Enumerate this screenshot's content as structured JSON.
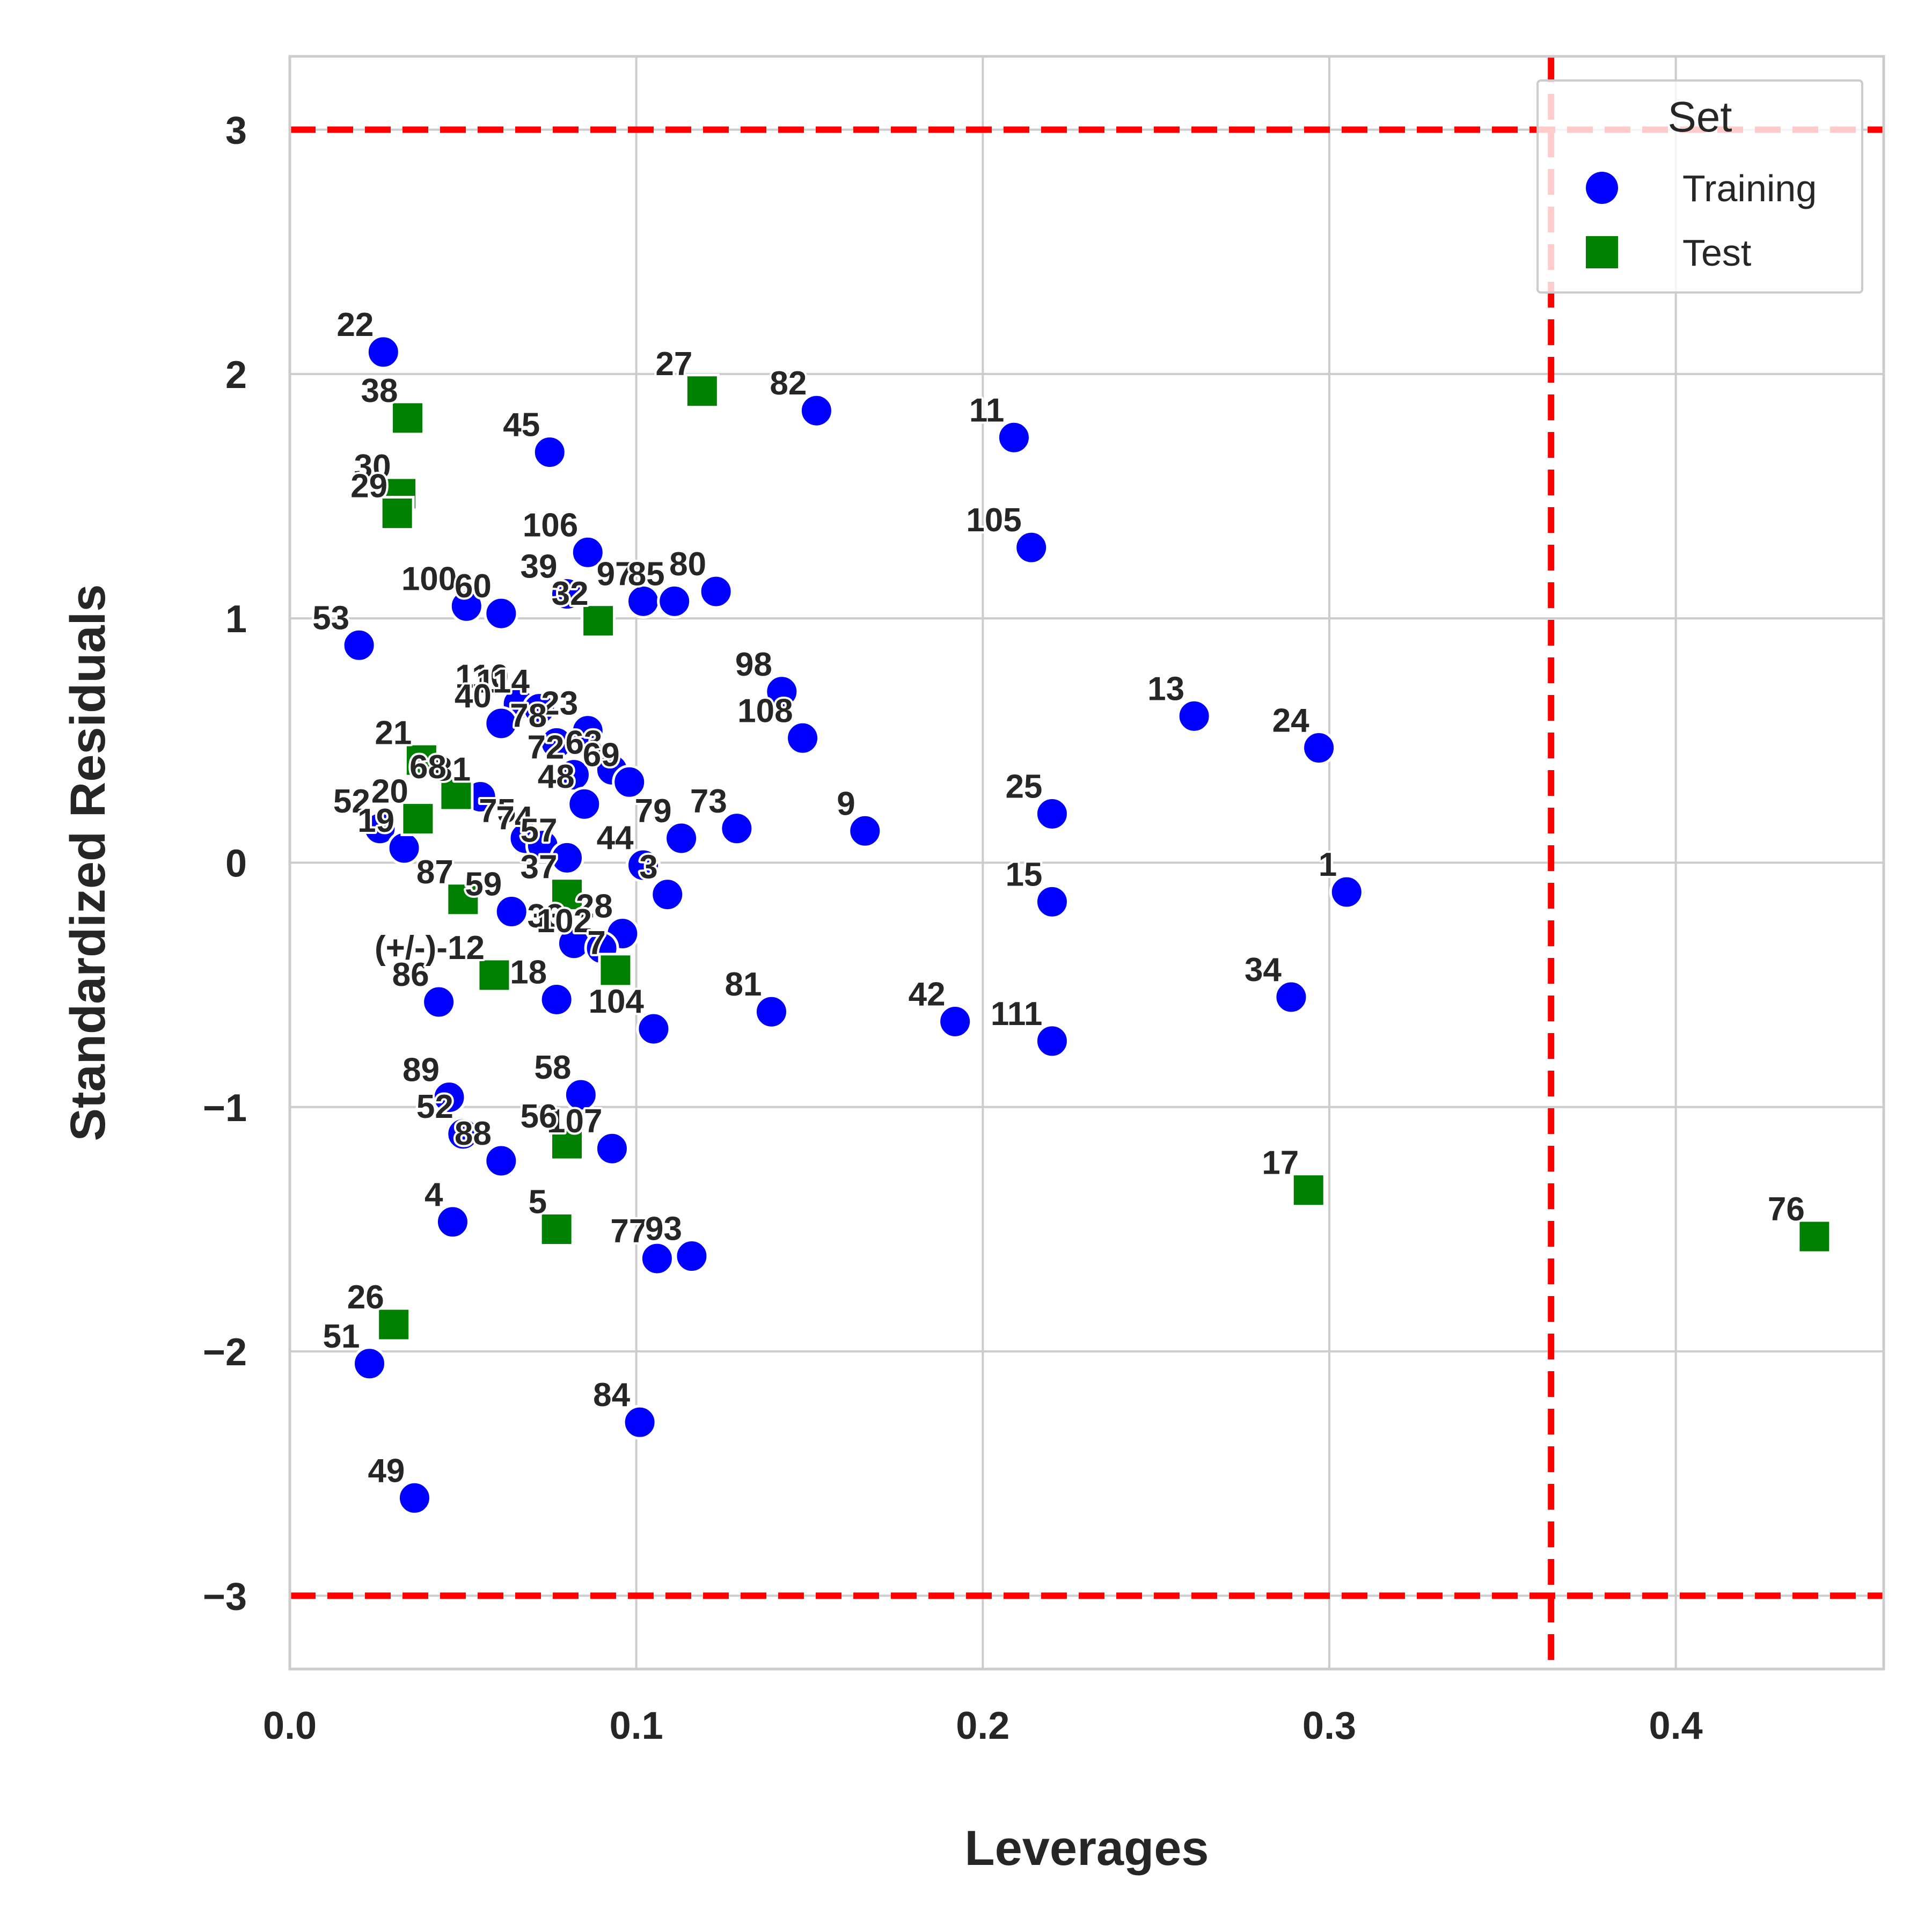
{
  "chart_data": {
    "type": "scatter",
    "xlabel": "Leverages",
    "ylabel": "Standardized Residuals",
    "xlim": [
      0.0,
      0.46
    ],
    "ylim": [
      -3.3,
      3.3
    ],
    "x_ticks": [
      0.0,
      0.1,
      0.2,
      0.3,
      0.4
    ],
    "x_tick_labels": [
      "0.0",
      "0.1",
      "0.2",
      "0.3",
      "0.4"
    ],
    "y_ticks": [
      3,
      2,
      1,
      0,
      -1,
      -2,
      -3
    ],
    "y_tick_labels": [
      "3",
      "2",
      "1",
      "0",
      "−1",
      "−2",
      "−3"
    ],
    "grid": true,
    "reference_lines": {
      "horizontal": [
        3,
        -3
      ],
      "vertical": [
        0.364
      ],
      "color": "#ff0000",
      "style": "dashed"
    },
    "legend": {
      "title": "Set",
      "position": "top-right",
      "entries": [
        {
          "label": "Training",
          "marker": "circle",
          "color": "#0000ff"
        },
        {
          "label": "Test",
          "marker": "square",
          "color": "#008000"
        }
      ]
    },
    "series": [
      {
        "name": "Training",
        "marker": "circle",
        "color": "#0000ff",
        "points": [
          {
            "label": "22",
            "x": 0.027,
            "y": 2.09
          },
          {
            "label": "45",
            "x": 0.075,
            "y": 1.68
          },
          {
            "label": "82",
            "x": 0.152,
            "y": 1.85
          },
          {
            "label": "11",
            "x": 0.209,
            "y": 1.74
          },
          {
            "label": "105",
            "x": 0.214,
            "y": 1.29
          },
          {
            "label": "106",
            "x": 0.086,
            "y": 1.27
          },
          {
            "label": "100",
            "x": 0.051,
            "y": 1.05
          },
          {
            "label": "60",
            "x": 0.061,
            "y": 1.02
          },
          {
            "label": "39",
            "x": 0.08,
            "y": 1.1
          },
          {
            "label": "97",
            "x": 0.102,
            "y": 1.07
          },
          {
            "label": "85",
            "x": 0.111,
            "y": 1.07
          },
          {
            "label": "80",
            "x": 0.123,
            "y": 1.11
          },
          {
            "label": "53",
            "x": 0.02,
            "y": 0.89
          },
          {
            "label": "98",
            "x": 0.142,
            "y": 0.7
          },
          {
            "label": "108",
            "x": 0.148,
            "y": 0.51
          },
          {
            "label": "13",
            "x": 0.261,
            "y": 0.6
          },
          {
            "label": "24",
            "x": 0.297,
            "y": 0.47
          },
          {
            "label": "110",
            "x": 0.066,
            "y": 0.65
          },
          {
            "label": "114",
            "x": 0.072,
            "y": 0.63
          },
          {
            "label": "40",
            "x": 0.061,
            "y": 0.57
          },
          {
            "label": "23",
            "x": 0.086,
            "y": 0.54
          },
          {
            "label": "78",
            "x": 0.077,
            "y": 0.49
          },
          {
            "label": "63",
            "x": 0.093,
            "y": 0.38
          },
          {
            "label": "69",
            "x": 0.098,
            "y": 0.33
          },
          {
            "label": "72",
            "x": 0.082,
            "y": 0.36
          },
          {
            "label": "48",
            "x": 0.085,
            "y": 0.24
          },
          {
            "label": "81",
            "x": 0.055,
            "y": 0.27
          },
          {
            "label": "25",
            "x": 0.22,
            "y": 0.2
          },
          {
            "label": "9",
            "x": 0.166,
            "y": 0.13
          },
          {
            "label": "73",
            "x": 0.129,
            "y": 0.14
          },
          {
            "label": "79",
            "x": 0.113,
            "y": 0.1
          },
          {
            "label": "75",
            "x": 0.068,
            "y": 0.1
          },
          {
            "label": "74",
            "x": 0.073,
            "y": 0.07
          },
          {
            "label": "57",
            "x": 0.08,
            "y": 0.02
          },
          {
            "label": "44",
            "x": 0.102,
            "y": -0.01
          },
          {
            "label": "52",
            "x": 0.026,
            "y": 0.14
          },
          {
            "label": "19",
            "x": 0.033,
            "y": 0.06
          },
          {
            "label": "3",
            "x": 0.109,
            "y": -0.13
          },
          {
            "label": "1",
            "x": 0.305,
            "y": -0.12
          },
          {
            "label": "15",
            "x": 0.22,
            "y": -0.16
          },
          {
            "label": "59",
            "x": 0.064,
            "y": -0.2
          },
          {
            "label": "28",
            "x": 0.096,
            "y": -0.29
          },
          {
            "label": "33",
            "x": 0.082,
            "y": -0.33
          },
          {
            "label": "102",
            "x": 0.09,
            "y": -0.35
          },
          {
            "label": "86",
            "x": 0.043,
            "y": -0.57
          },
          {
            "label": "18",
            "x": 0.077,
            "y": -0.56
          },
          {
            "label": "34",
            "x": 0.289,
            "y": -0.55
          },
          {
            "label": "104",
            "x": 0.105,
            "y": -0.68
          },
          {
            "label": "81",
            "x": 0.139,
            "y": -0.61
          },
          {
            "label": "42",
            "x": 0.192,
            "y": -0.65
          },
          {
            "label": "111",
            "x": 0.22,
            "y": -0.73
          },
          {
            "label": "89",
            "x": 0.046,
            "y": -0.96
          },
          {
            "label": "58",
            "x": 0.084,
            "y": -0.95
          },
          {
            "label": "52",
            "x": 0.05,
            "y": -1.11
          },
          {
            "label": "88",
            "x": 0.061,
            "y": -1.22
          },
          {
            "label": "107",
            "x": 0.093,
            "y": -1.17
          },
          {
            "label": "4",
            "x": 0.047,
            "y": -1.47
          },
          {
            "label": "77",
            "x": 0.106,
            "y": -1.62
          },
          {
            "label": "93",
            "x": 0.116,
            "y": -1.61
          },
          {
            "label": "51",
            "x": 0.023,
            "y": -2.05
          },
          {
            "label": "84",
            "x": 0.101,
            "y": -2.29
          },
          {
            "label": "49",
            "x": 0.036,
            "y": -2.6
          }
        ]
      },
      {
        "name": "Test",
        "marker": "square",
        "color": "#008000",
        "points": [
          {
            "label": "38",
            "x": 0.034,
            "y": 1.82
          },
          {
            "label": "27",
            "x": 0.119,
            "y": 1.93
          },
          {
            "label": "30",
            "x": 0.032,
            "y": 1.51
          },
          {
            "label": "29",
            "x": 0.031,
            "y": 1.43
          },
          {
            "label": "32",
            "x": 0.089,
            "y": 0.99
          },
          {
            "label": "21",
            "x": 0.038,
            "y": 0.42
          },
          {
            "label": "68",
            "x": 0.048,
            "y": 0.28
          },
          {
            "label": "20",
            "x": 0.037,
            "y": 0.18
          },
          {
            "label": "87",
            "x": 0.05,
            "y": -0.15
          },
          {
            "label": "37",
            "x": 0.08,
            "y": -0.13
          },
          {
            "label": "(+/-)-12",
            "x": 0.059,
            "y": -0.46
          },
          {
            "label": "7",
            "x": 0.094,
            "y": -0.44
          },
          {
            "label": "56",
            "x": 0.08,
            "y": -1.15
          },
          {
            "label": "5",
            "x": 0.077,
            "y": -1.5
          },
          {
            "label": "17",
            "x": 0.294,
            "y": -1.34
          },
          {
            "label": "26",
            "x": 0.03,
            "y": -1.89
          },
          {
            "label": "76",
            "x": 0.44,
            "y": -1.53
          }
        ]
      }
    ]
  }
}
